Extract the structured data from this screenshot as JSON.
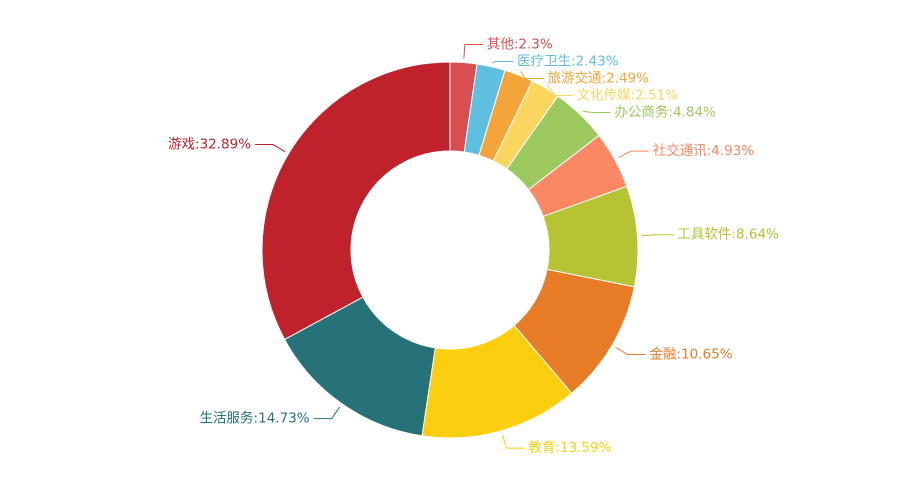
{
  "chart_data": {
    "type": "pie",
    "variant": "donut",
    "title": "",
    "legend": "none",
    "slices": [
      {
        "label": "其他",
        "value": 2.3,
        "display": "其他:2.3%",
        "color": "#d94f4f"
      },
      {
        "label": "医疗卫生",
        "value": 2.43,
        "display": "医疗卫生:2.43%",
        "color": "#5fbfe0"
      },
      {
        "label": "旅游交通",
        "value": 2.49,
        "display": "旅游交通:2.49%",
        "color": "#f4a53a"
      },
      {
        "label": "文化传媒",
        "value": 2.51,
        "display": "文化传媒:2.51%",
        "color": "#f9d65e"
      },
      {
        "label": "办公商务",
        "value": 4.84,
        "display": "办公商务:4.84%",
        "color": "#9bc95e"
      },
      {
        "label": "社交通讯",
        "value": 4.93,
        "display": "社交通讯:4.93%",
        "color": "#fc8763"
      },
      {
        "label": "工具软件",
        "value": 8.64,
        "display": "工具软件:8.64%",
        "color": "#b6c433"
      },
      {
        "label": "金融",
        "value": 10.65,
        "display": "金融:10.65%",
        "color": "#e87b25"
      },
      {
        "label": "教育",
        "value": 13.59,
        "display": "教育:13.59%",
        "color": "#fbcf0f"
      },
      {
        "label": "生活服务",
        "value": 14.73,
        "display": "生活服务:14.73%",
        "color": "#277179"
      },
      {
        "label": "游戏",
        "value": 32.89,
        "display": "游戏:32.89%",
        "color": "#c0222b"
      }
    ]
  }
}
